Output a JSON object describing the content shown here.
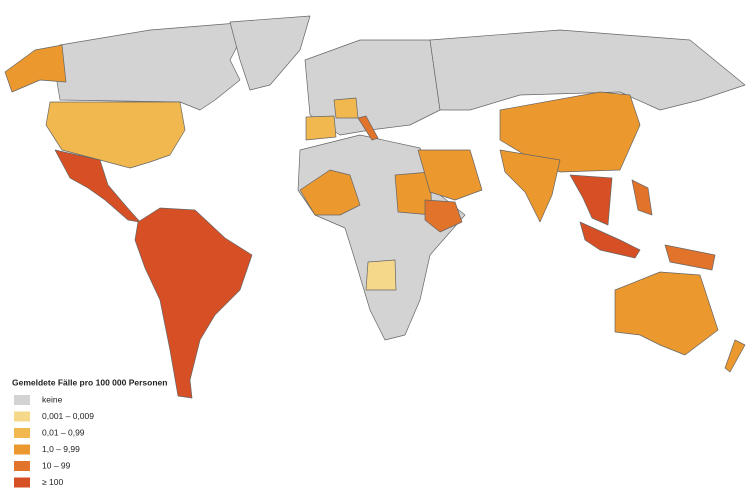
{
  "legend": {
    "title": "Gemeldete Fälle pro 100 000 Personen",
    "items": [
      {
        "label": "keine",
        "color": "#d3d3d3"
      },
      {
        "label": "0,001 – 0,009",
        "color": "#f6d88a"
      },
      {
        "label": "0,01 – 0,99",
        "color": "#f2b850"
      },
      {
        "label": "1,0 – 9,99",
        "color": "#eb982f"
      },
      {
        "label": "10 – 99",
        "color": "#e2732a"
      },
      {
        "label": "≥ 100",
        "color": "#d74f25"
      }
    ]
  }
}
